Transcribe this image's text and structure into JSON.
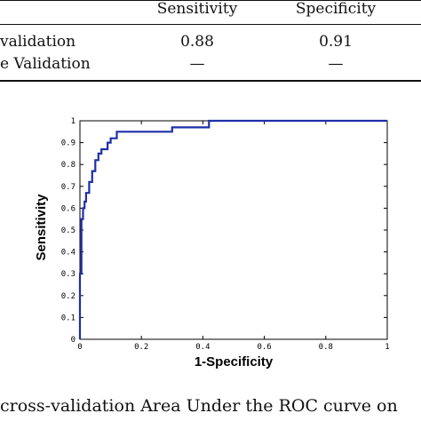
{
  "table": {
    "headers": [
      "",
      "Sensitivity",
      "Specificity"
    ],
    "rows": [
      {
        "label": "validation",
        "sensitivity": "0.88",
        "specificity": "0.91"
      },
      {
        "label": "e Validation",
        "sensitivity": "—",
        "specificity": "—"
      }
    ]
  },
  "chart_data": {
    "type": "line",
    "title": "",
    "xlabel": "1-Specificity",
    "ylabel": "Sensitivity",
    "xlim": [
      0,
      1
    ],
    "ylim": [
      0,
      1
    ],
    "grid": false,
    "x_ticks": [
      "0",
      "0.2",
      "0.4",
      "0.6",
      "0.8",
      "1"
    ],
    "y_ticks": [
      "0",
      "0.1",
      "0.2",
      "0.3",
      "0.4",
      "0.5",
      "0.6",
      "0.7",
      "0.8",
      "0.9",
      "1"
    ],
    "series": [
      {
        "color": "#1f2fa8",
        "x": [
          0,
          0,
          0.005,
          0.005,
          0.01,
          0.01,
          0.015,
          0.015,
          0.02,
          0.02,
          0.03,
          0.03,
          0.04,
          0.04,
          0.05,
          0.05,
          0.06,
          0.06,
          0.07,
          0.07,
          0.09,
          0.09,
          0.1,
          0.1,
          0.12,
          0.12,
          0.3,
          0.3,
          0.42,
          0.42,
          1
        ],
        "y": [
          0,
          0.3,
          0.3,
          0.55,
          0.55,
          0.6,
          0.6,
          0.63,
          0.63,
          0.67,
          0.67,
          0.72,
          0.72,
          0.77,
          0.77,
          0.82,
          0.82,
          0.85,
          0.85,
          0.87,
          0.87,
          0.9,
          0.9,
          0.92,
          0.92,
          0.95,
          0.95,
          0.97,
          0.97,
          1,
          1
        ]
      }
    ]
  },
  "caption": "cross-validation Area Under the ROC curve on"
}
